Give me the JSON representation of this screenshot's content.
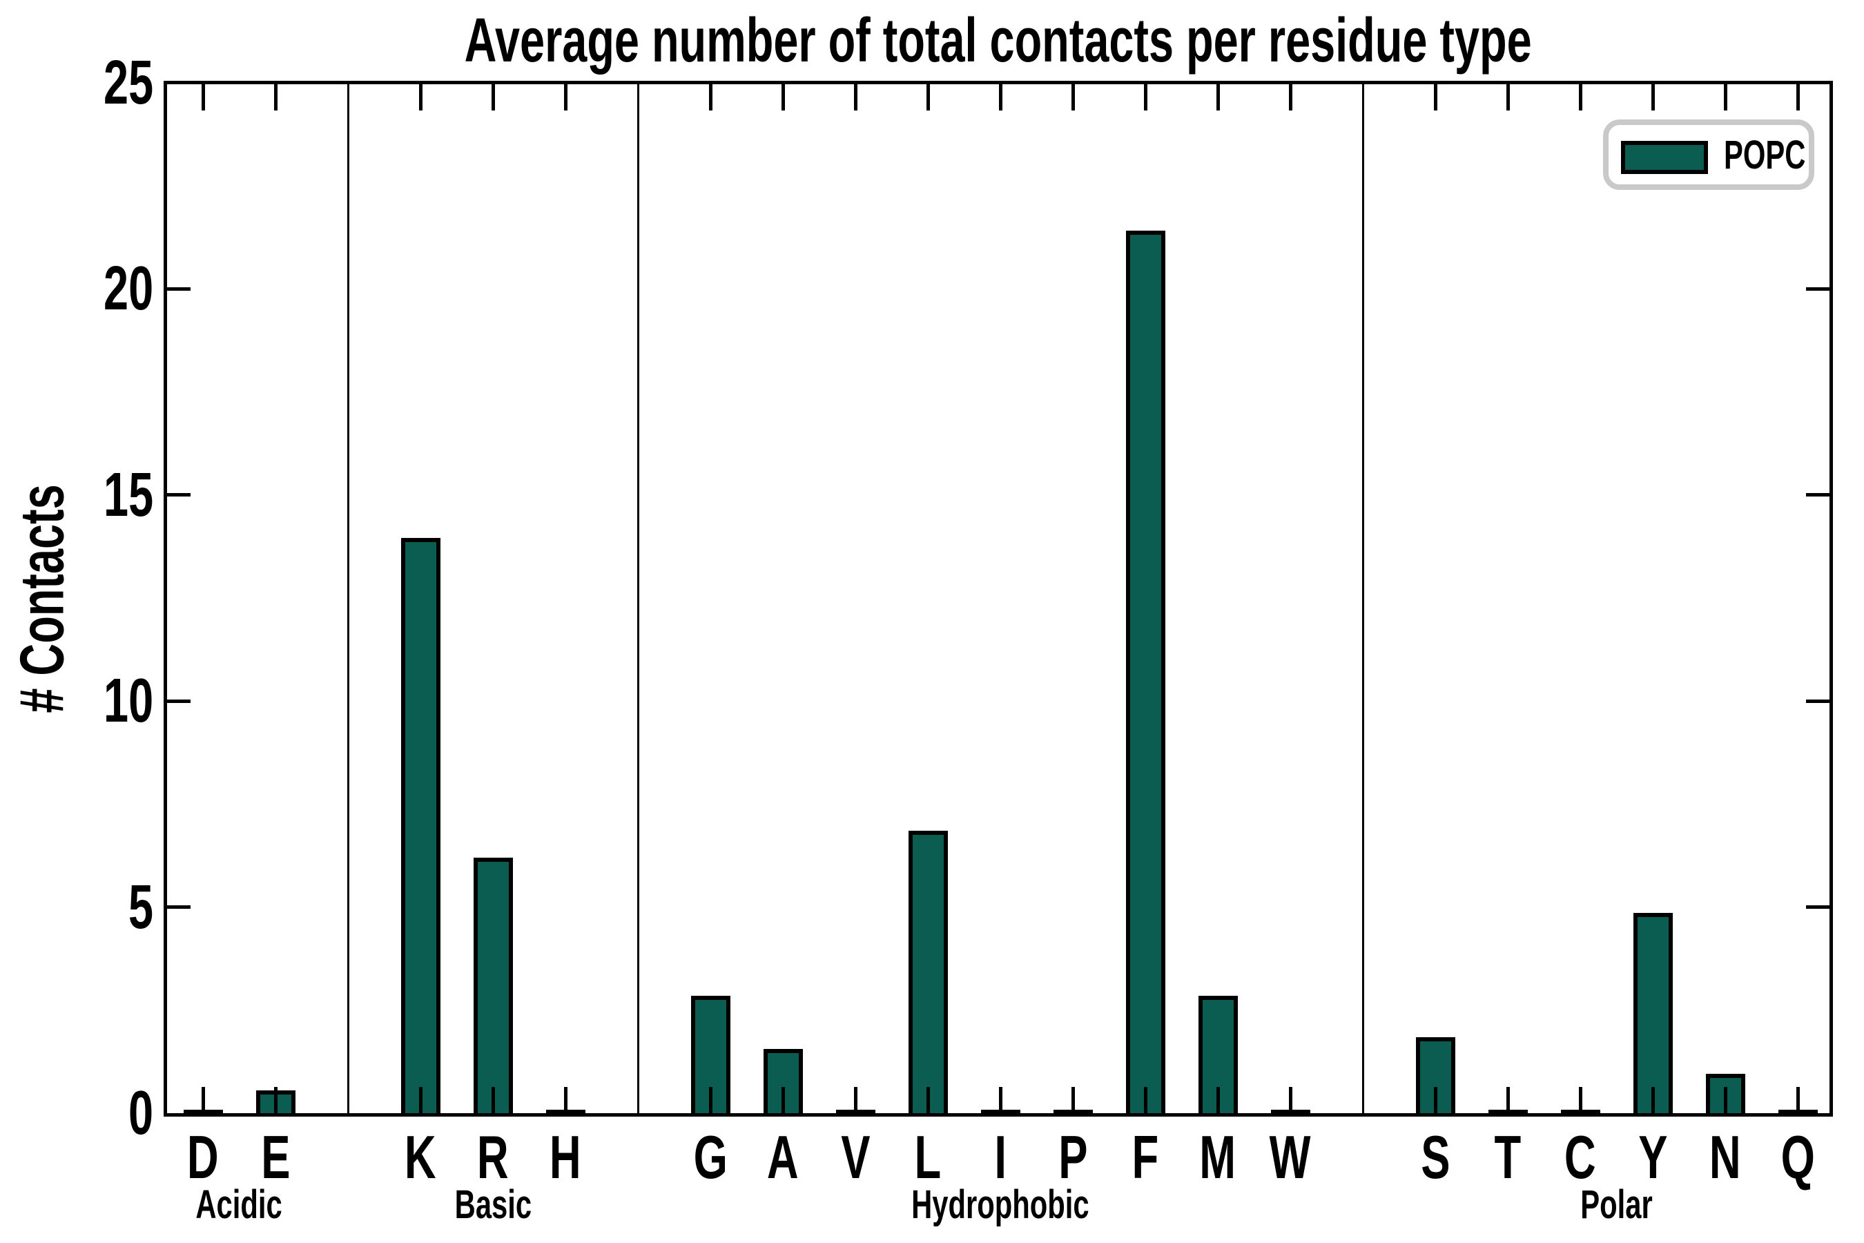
{
  "chart_data": {
    "type": "bar",
    "title": "Average number of total contacts per residue type",
    "ylabel": "# Contacts",
    "xlabel": "",
    "ylim": [
      0,
      25
    ],
    "yticks": [
      0,
      5,
      10,
      15,
      20,
      25
    ],
    "grid": false,
    "legend": {
      "label": "POPC",
      "position": "upper right"
    },
    "bar_color": "#0B5D51",
    "bar_edge_color": "#000000",
    "legend_border_color": "#c9c9c9",
    "groups": [
      {
        "label": "Acidic",
        "categories": [
          "D",
          "E"
        ],
        "values": [
          0.05,
          0.55
        ]
      },
      {
        "label": "Basic",
        "categories": [
          "K",
          "R",
          "H"
        ],
        "values": [
          13.95,
          6.2,
          0.05
        ]
      },
      {
        "label": "Hydrophobic",
        "categories": [
          "G",
          "A",
          "V",
          "L",
          "I",
          "P",
          "F",
          "M",
          "W"
        ],
        "values": [
          2.85,
          1.55,
          0.05,
          6.85,
          0.05,
          0.05,
          21.4,
          2.85,
          0.05
        ]
      },
      {
        "label": "Polar",
        "categories": [
          "S",
          "T",
          "C",
          "Y",
          "N",
          "Q"
        ],
        "values": [
          1.85,
          0.05,
          0.05,
          4.85,
          0.95,
          0.05
        ]
      }
    ],
    "categories": [
      "D",
      "E",
      "K",
      "R",
      "H",
      "G",
      "A",
      "V",
      "L",
      "I",
      "P",
      "F",
      "M",
      "W",
      "S",
      "T",
      "C",
      "Y",
      "N",
      "Q"
    ],
    "values": [
      0.05,
      0.55,
      13.95,
      6.2,
      0.05,
      2.85,
      1.55,
      0.05,
      6.85,
      0.05,
      0.05,
      21.4,
      2.85,
      0.05,
      1.85,
      0.05,
      0.05,
      4.85,
      0.95,
      0.05
    ]
  }
}
